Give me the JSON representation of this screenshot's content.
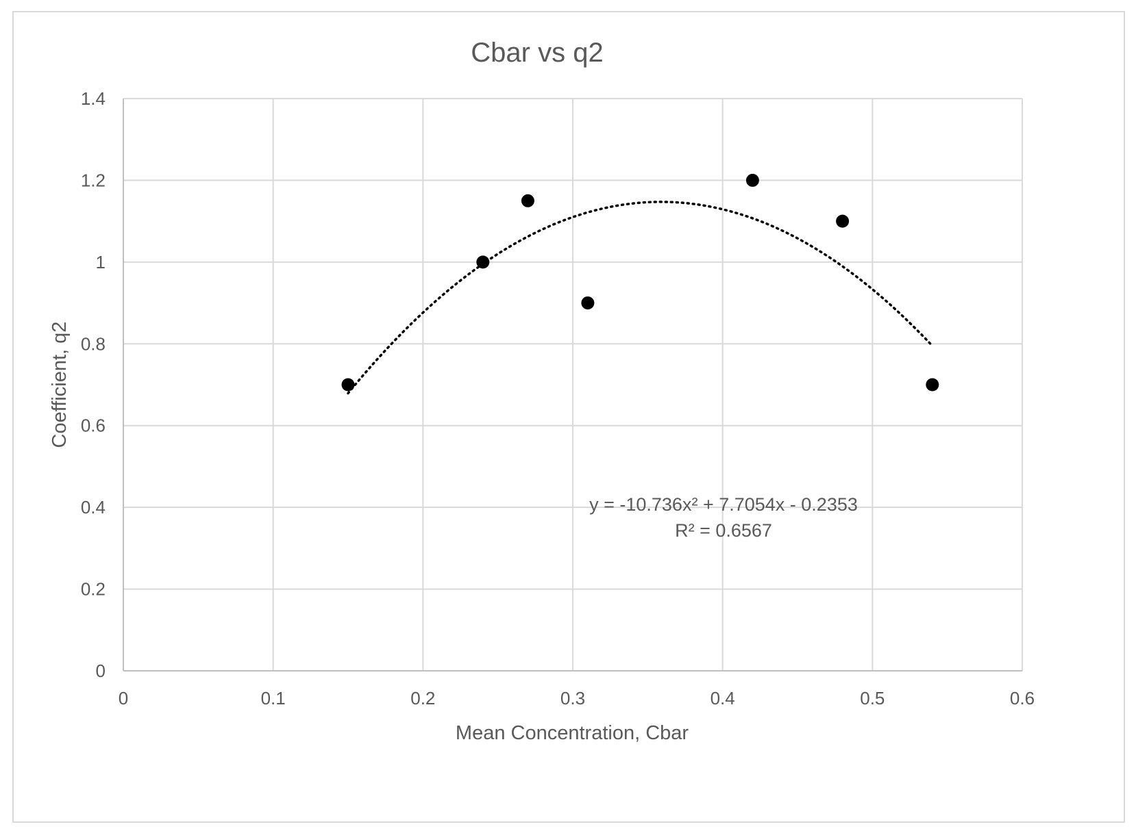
{
  "chart_data": {
    "type": "scatter",
    "title": "Cbar vs q2",
    "xlabel": "Mean Concentration, Cbar",
    "ylabel": "Coefficient, q2",
    "xlim": [
      0,
      0.6
    ],
    "ylim": [
      0,
      1.4
    ],
    "x_ticks": [
      "0",
      "0.1",
      "0.2",
      "0.3",
      "0.4",
      "0.5",
      "0.6"
    ],
    "y_ticks": [
      "0",
      "0.2",
      "0.4",
      "0.6",
      "0.8",
      "1",
      "1.2",
      "1.4"
    ],
    "grid": true,
    "legend": "none",
    "series": [
      {
        "marker": "filled-circle",
        "color": "#000000",
        "points": [
          {
            "x": 0.15,
            "y": 0.7
          },
          {
            "x": 0.24,
            "y": 1.0
          },
          {
            "x": 0.27,
            "y": 1.15
          },
          {
            "x": 0.31,
            "y": 0.9
          },
          {
            "x": 0.42,
            "y": 1.2
          },
          {
            "x": 0.48,
            "y": 1.1
          },
          {
            "x": 0.54,
            "y": 0.7
          }
        ]
      }
    ],
    "trendline": {
      "type": "polynomial",
      "style": "dotted",
      "color": "#000000",
      "coefficients": [
        -10.736,
        7.7054,
        -0.2353
      ],
      "x_range": [
        0.15,
        0.54
      ],
      "equation_label": "y = -10.736x² + 7.7054x - 0.2353",
      "r2_label": "R² = 0.6567"
    }
  }
}
